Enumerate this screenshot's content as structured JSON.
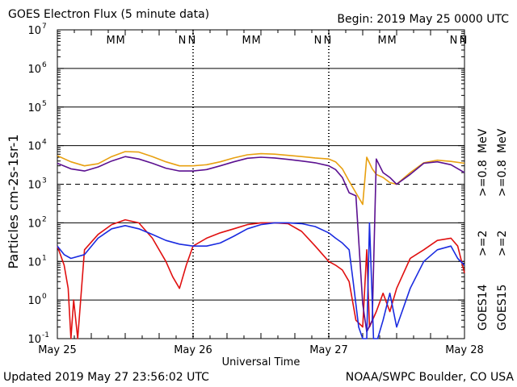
{
  "header": {
    "title": "GOES Electron Flux (5 minute data)",
    "begin": "Begin: 2019 May 25 0000 UTC"
  },
  "footer": {
    "updated": "Updated 2019 May 27 23:56:02 UTC",
    "source": "NOAA/SWPC Boulder, CO USA"
  },
  "legend": {
    "goes14_label": "GOES14",
    "goes15_label": "GOES15",
    "goes14_ge2": ">=2",
    "goes14_ge08": ">=0.8",
    "goes15_ge2": ">=2",
    "goes15_ge08": ">=0.8",
    "mev": "MeV",
    "mev2": "MeV"
  },
  "colors": {
    "goes14_ge2": "#1a2be0",
    "goes15_ge2": "#e01010",
    "goes14_ge08": "#5b1090",
    "goes15_ge08": "#e8a010",
    "marker_m": "#1a2be0",
    "marker_n": "#e01010"
  },
  "chart_data": {
    "type": "line",
    "title": "GOES Electron Flux (5 minute data)",
    "xlabel": "Universal Time",
    "ylabel": "Particles cm-2s-1sr-1",
    "yscale": "log",
    "ylim": [
      0.1,
      10000000
    ],
    "xlim": [
      0,
      3
    ],
    "x_tick_labels": [
      "May 25",
      "May 26",
      "May 27",
      "May 28"
    ],
    "y_tick_exponents": [
      -1,
      0,
      1,
      2,
      3,
      4,
      5,
      6,
      7
    ],
    "threshold_line": 1000,
    "grid": true,
    "markers": [
      {
        "label": "M",
        "day": 0.42,
        "colors": [
          "blue",
          "red"
        ]
      },
      {
        "label": "N",
        "day": 0.95,
        "colors": [
          "blue",
          "red"
        ]
      },
      {
        "label": "M",
        "day": 1.42,
        "colors": [
          "blue",
          "red"
        ]
      },
      {
        "label": "N",
        "day": 1.95,
        "colors": [
          "blue",
          "red"
        ]
      },
      {
        "label": "M",
        "day": 2.42,
        "colors": [
          "blue",
          "red"
        ]
      },
      {
        "label": "N",
        "day": 2.95,
        "colors": [
          "blue",
          "red"
        ]
      }
    ],
    "series": [
      {
        "name": "GOES14 >=0.8 MeV",
        "x": [
          0,
          0.1,
          0.2,
          0.3,
          0.4,
          0.5,
          0.6,
          0.7,
          0.8,
          0.9,
          1.0,
          1.1,
          1.2,
          1.3,
          1.4,
          1.5,
          1.6,
          1.7,
          1.8,
          1.9,
          2.0,
          2.05,
          2.1,
          2.15,
          2.2,
          2.25,
          2.28,
          2.32,
          2.35,
          2.4,
          2.45,
          2.5,
          2.6,
          2.7,
          2.8,
          2.9,
          3.0
        ],
        "y": [
          3500,
          2500,
          2200,
          2800,
          4000,
          5200,
          4500,
          3500,
          2600,
          2200,
          2200,
          2400,
          3000,
          3800,
          4700,
          5000,
          4800,
          4400,
          4000,
          3600,
          3000,
          2400,
          1500,
          600,
          500,
          0.8,
          0.15,
          0.3,
          4500,
          2000,
          1500,
          1000,
          1800,
          3500,
          3800,
          3200,
          2000
        ]
      },
      {
        "name": "GOES15 >=0.8 MeV",
        "x": [
          0,
          0.1,
          0.2,
          0.3,
          0.4,
          0.5,
          0.6,
          0.7,
          0.8,
          0.9,
          1.0,
          1.1,
          1.2,
          1.3,
          1.4,
          1.5,
          1.6,
          1.7,
          1.8,
          1.9,
          2.0,
          2.05,
          2.1,
          2.15,
          2.2,
          2.25,
          2.28,
          2.32,
          2.35,
          2.4,
          2.45,
          2.5,
          2.6,
          2.7,
          2.8,
          2.9,
          3.0
        ],
        "y": [
          5500,
          3800,
          3000,
          3400,
          5200,
          7000,
          6800,
          5200,
          3800,
          3000,
          3000,
          3200,
          3800,
          4800,
          5800,
          6200,
          6000,
          5600,
          5200,
          4800,
          4500,
          3800,
          2500,
          1200,
          600,
          300,
          5000,
          2500,
          1800,
          1500,
          1100,
          1000,
          2000,
          3600,
          4200,
          3900,
          3500
        ]
      },
      {
        "name": "GOES14 >=2 MeV",
        "x": [
          0,
          0.05,
          0.1,
          0.2,
          0.3,
          0.4,
          0.5,
          0.6,
          0.7,
          0.8,
          0.9,
          1.0,
          1.1,
          1.2,
          1.3,
          1.4,
          1.5,
          1.6,
          1.7,
          1.8,
          1.9,
          2.0,
          2.05,
          2.1,
          2.15,
          2.18,
          2.22,
          2.25,
          2.28,
          2.3,
          2.33,
          2.36,
          2.4,
          2.45,
          2.5,
          2.6,
          2.7,
          2.8,
          2.9,
          2.95,
          3.0
        ],
        "y": [
          25,
          15,
          12,
          15,
          40,
          70,
          85,
          70,
          50,
          35,
          28,
          25,
          25,
          30,
          45,
          70,
          90,
          100,
          100,
          95,
          80,
          55,
          40,
          30,
          20,
          3,
          0.2,
          0.1,
          0.1,
          100,
          0.1,
          0.1,
          0.3,
          1.5,
          0.2,
          2,
          10,
          20,
          25,
          12,
          8
        ]
      },
      {
        "name": "GOES15 >=2 MeV",
        "x": [
          0,
          0.05,
          0.08,
          0.1,
          0.12,
          0.15,
          0.2,
          0.3,
          0.4,
          0.5,
          0.6,
          0.7,
          0.8,
          0.85,
          0.9,
          0.95,
          1.0,
          1.1,
          1.2,
          1.3,
          1.4,
          1.5,
          1.6,
          1.7,
          1.8,
          1.9,
          2.0,
          2.05,
          2.1,
          2.15,
          2.2,
          2.25,
          2.28,
          2.3,
          2.35,
          2.4,
          2.45,
          2.5,
          2.6,
          2.7,
          2.8,
          2.9,
          2.95,
          3.0
        ],
        "y": [
          25,
          8,
          2,
          0.1,
          1,
          0.1,
          20,
          50,
          90,
          120,
          100,
          40,
          10,
          4,
          2,
          8,
          25,
          40,
          55,
          70,
          90,
          100,
          100,
          95,
          60,
          25,
          10,
          8,
          6,
          3,
          0.3,
          0.2,
          20,
          0.2,
          0.5,
          1.5,
          0.5,
          2,
          12,
          20,
          35,
          40,
          25,
          5
        ]
      }
    ]
  }
}
